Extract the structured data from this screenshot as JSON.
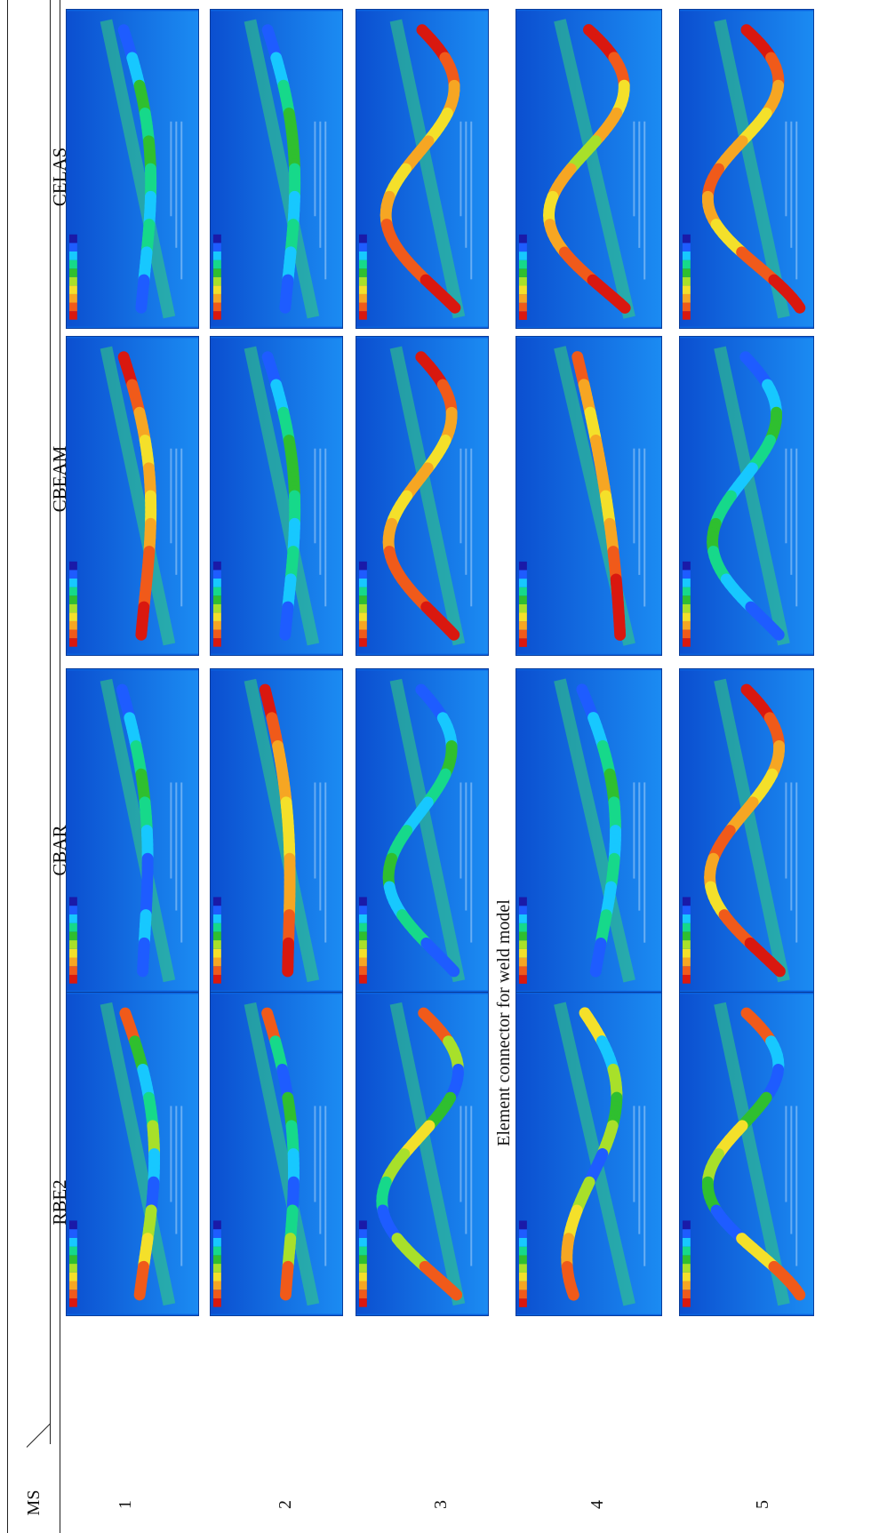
{
  "table": {
    "title": "Element connector for weld model",
    "row_header": "MS",
    "columns": [
      "RBE2",
      "CBAR",
      "CBEAM",
      "CELAS"
    ],
    "rows": [
      "1",
      "2",
      "3",
      "4",
      "5"
    ]
  },
  "colors": {
    "background": "#0a63e0",
    "scale": [
      "#1a1aa8",
      "#1e5cff",
      "#17c8ff",
      "#16d98a",
      "#2fbf2f",
      "#a8e02a",
      "#f4e02a",
      "#f6a623",
      "#f05a1a",
      "#d9180f"
    ],
    "guide": "#35d07a"
  }
}
